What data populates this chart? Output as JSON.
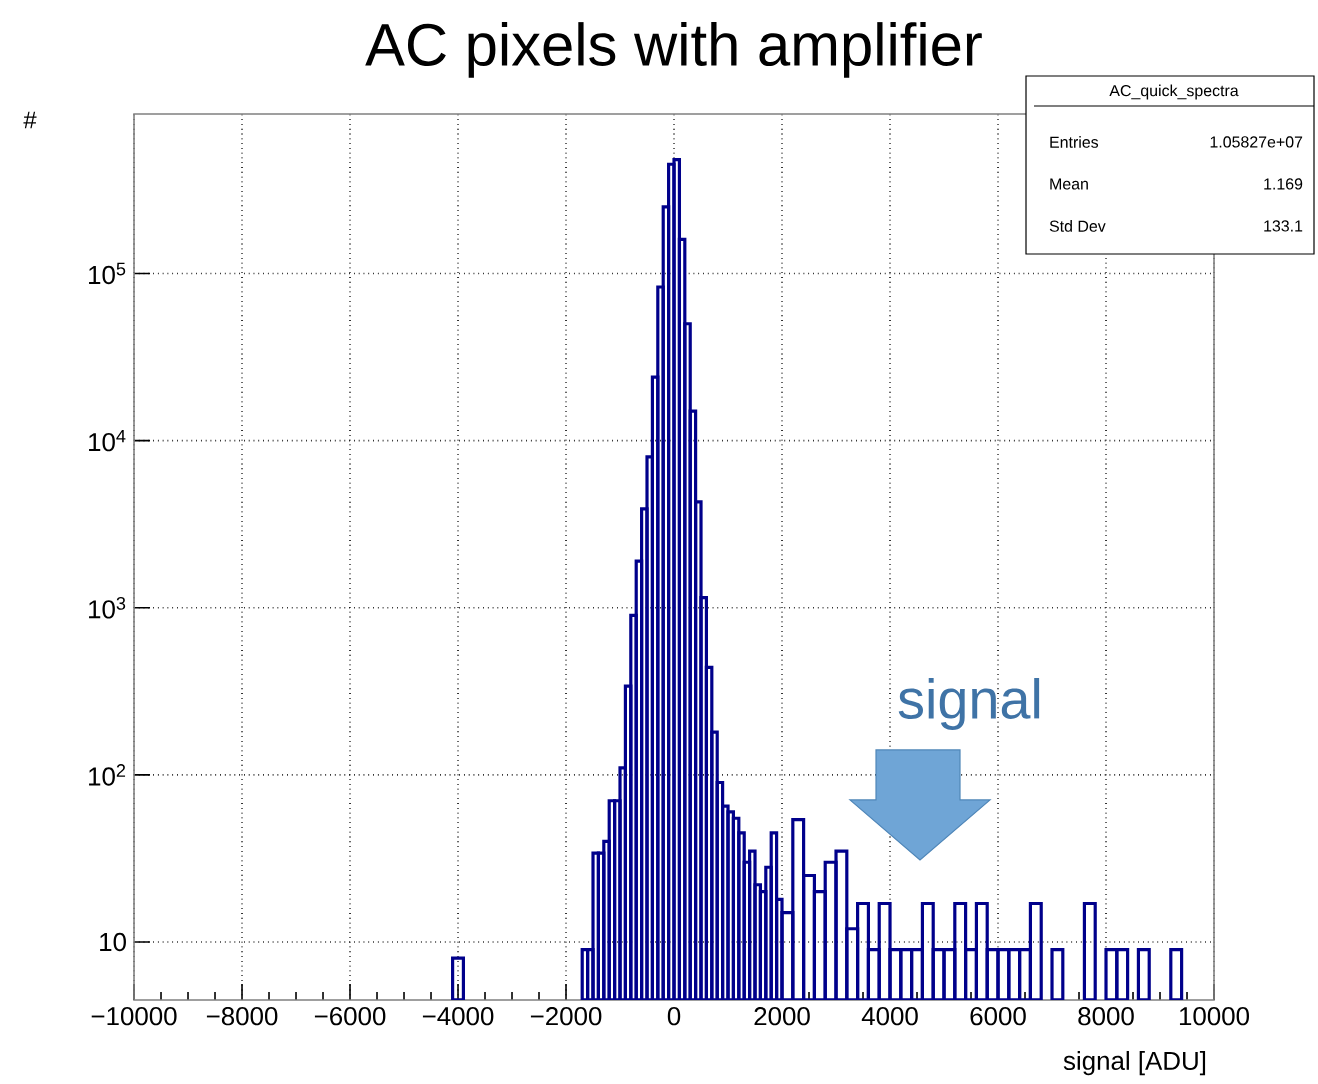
{
  "chart_data": {
    "type": "histogram",
    "title": "AC pixels with amplifier",
    "xlabel": "signal [ADU]",
    "ylabel": "#",
    "bins": [
      -4100,
      -3900,
      -1700,
      -1600,
      -1500,
      -1400,
      -1300,
      -1200,
      -1100,
      -1000,
      -900,
      -800,
      -700,
      -600,
      -500,
      -400,
      -300,
      -200,
      -100,
      0,
      100,
      200,
      300,
      400,
      500,
      600,
      700,
      800,
      900,
      1000,
      1100,
      1200,
      1300,
      1400,
      1500,
      1600,
      1700,
      1800,
      1900,
      2000,
      2200,
      2400,
      2600,
      2800,
      3000,
      3200,
      3400,
      3600,
      3800,
      4000,
      4200,
      4400,
      4600,
      4800,
      5000,
      5200,
      5400,
      5600,
      5800,
      6000,
      6200,
      6400,
      6600,
      6800,
      7000,
      7200,
      7600,
      7800,
      8000,
      8200,
      8400,
      8600,
      8800,
      9200,
      9400
    ],
    "values": [
      8,
      null,
      9,
      9,
      34,
      34,
      40,
      70,
      70,
      110,
      340,
      900,
      1900,
      3900,
      8000,
      24000,
      83000,
      250000,
      450000,
      480000,
      160000,
      50000,
      15000,
      4300,
      1150,
      440,
      180,
      90,
      65,
      60,
      55,
      45,
      30,
      35,
      22,
      20,
      28,
      45,
      18,
      15,
      54,
      25,
      20,
      30,
      35,
      12,
      17,
      9,
      17,
      9,
      9,
      9,
      17,
      9,
      9,
      17,
      9,
      17,
      9,
      9,
      9,
      9,
      17,
      null,
      9,
      null,
      17,
      null,
      9,
      9,
      null,
      9,
      null,
      9
    ],
    "color": "#00008b",
    "log": "y",
    "xlim": [
      -10000,
      10000
    ],
    "ylim": [
      4.5,
      900000
    ],
    "xticks": [
      {
        "value": -10000,
        "label": "−10000"
      },
      {
        "value": -8000,
        "label": "−8000"
      },
      {
        "value": -6000,
        "label": "−6000"
      },
      {
        "value": -4000,
        "label": "−4000"
      },
      {
        "value": -2000,
        "label": "−2000"
      },
      0,
      2000,
      4000,
      6000,
      8000,
      10000
    ],
    "yticks": [
      10,
      {
        "value": 100,
        "label": "10$^{2}$"
      },
      {
        "value": 1000,
        "label": "10$^{3}$"
      },
      {
        "value": 10000,
        "label": "10$^{4}$"
      },
      {
        "value": 100000,
        "label": "10$^{5}$"
      }
    ],
    "grid": true,
    "annotations": [
      "AC_quick_spectra",
      "Entries",
      "1.05827e+07",
      "Mean",
      "1.169",
      "Std Dev",
      "133.1",
      "signal"
    ]
  }
}
